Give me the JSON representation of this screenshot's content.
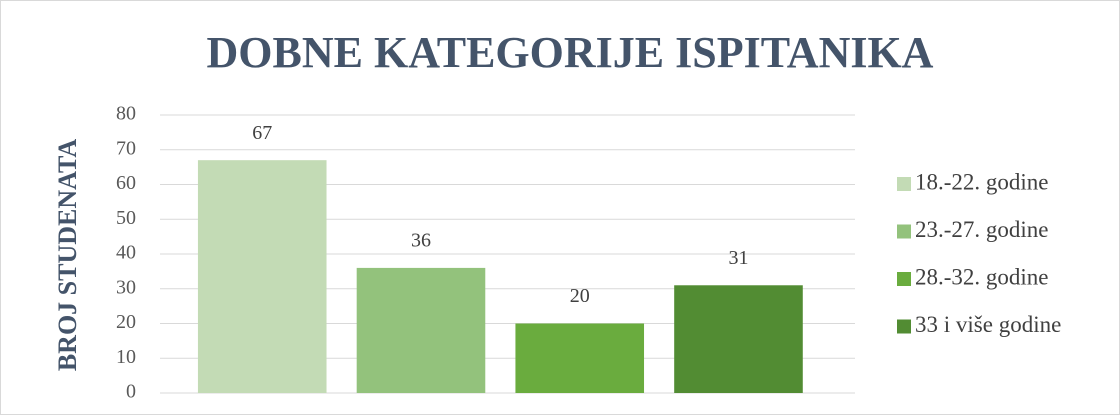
{
  "chart_data": {
    "type": "bar",
    "title": "DOBNE KATEGORIJE ISPITANIKA",
    "y_label": "BROJ STUDENATA",
    "categories": [
      null
    ],
    "series": [
      {
        "name": "18.-22. godine",
        "color": "#c3dbb5",
        "values": [
          67
        ]
      },
      {
        "name": "23.-27. godine",
        "color": "#93c27c",
        "values": [
          36
        ]
      },
      {
        "name": "28.-32. godine",
        "color": "#6aac3e",
        "values": [
          20
        ]
      },
      {
        "name": "33 i više godine",
        "color": "#528c33",
        "values": [
          31
        ]
      }
    ],
    "ylim": [
      0,
      80
    ],
    "yticks": [
      0,
      10,
      20,
      30,
      40,
      50,
      60,
      70,
      80
    ],
    "grid": true,
    "legend": "right"
  }
}
